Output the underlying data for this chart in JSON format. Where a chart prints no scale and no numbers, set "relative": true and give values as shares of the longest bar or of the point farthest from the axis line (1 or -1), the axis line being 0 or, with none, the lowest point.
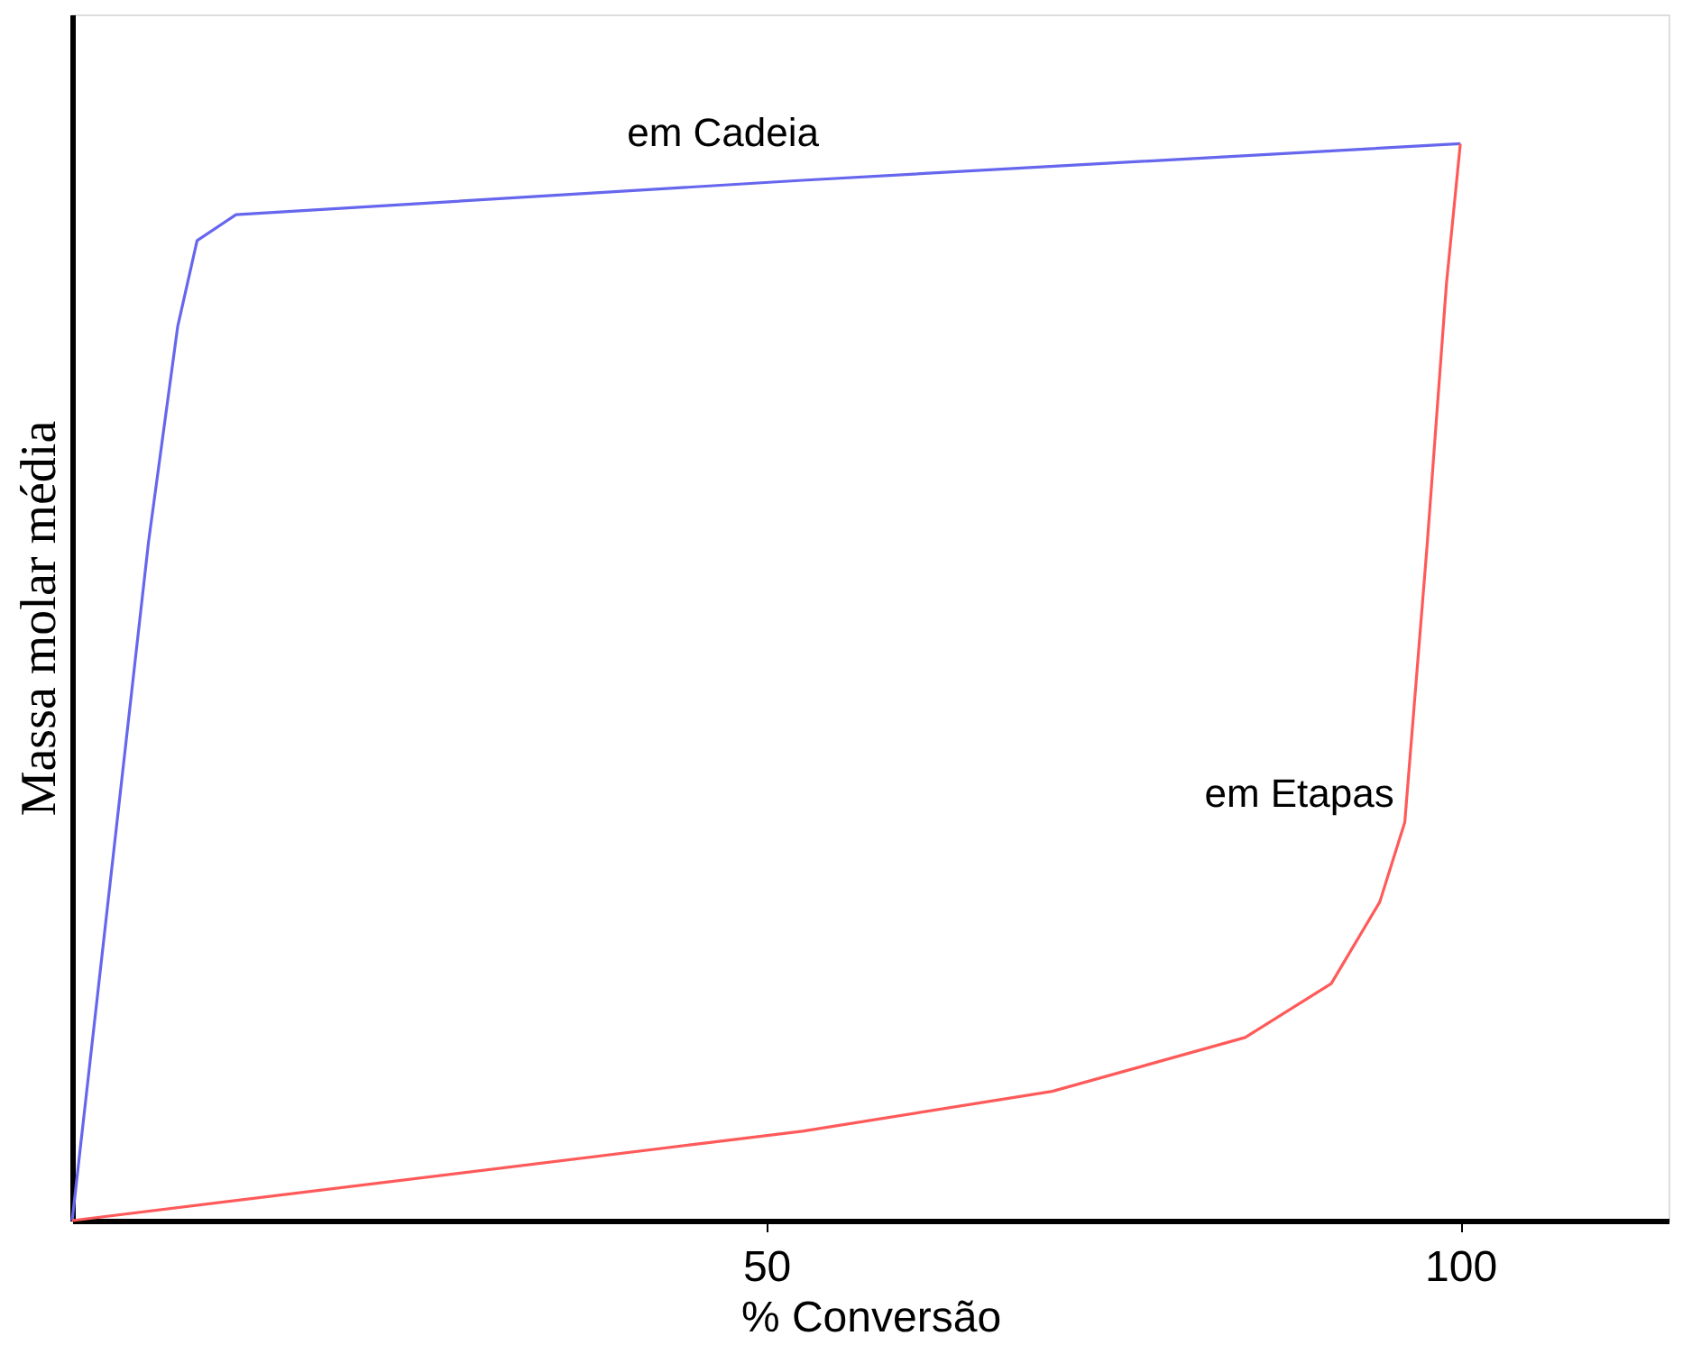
{
  "chart_data": {
    "type": "line",
    "xlabel": "% Conversão",
    "ylabel": "Massa molar média",
    "relative": true,
    "xlim": [
      0,
      115
    ],
    "xticks": [
      50,
      100
    ],
    "legend": false,
    "marker": "none",
    "line_style": "solid",
    "series": [
      {
        "name": "em Cadeia",
        "color": "#6666ee",
        "x": [
          0,
          5.5,
          7.6,
          9,
          11.8,
          52.6,
          100
        ],
        "values": [
          0,
          0.63,
          0.83,
          0.91,
          0.934,
          0.966,
          1
        ]
      },
      {
        "name": "em Etapas",
        "color": "#ff5a5a",
        "x": [
          0,
          52.6,
          70.6,
          84.5,
          90.7,
          94.2,
          96,
          97.6,
          99,
          100
        ],
        "values": [
          0,
          0.083,
          0.12,
          0.17,
          0.22,
          0.296,
          0.37,
          0.626,
          0.87,
          1
        ]
      }
    ]
  }
}
